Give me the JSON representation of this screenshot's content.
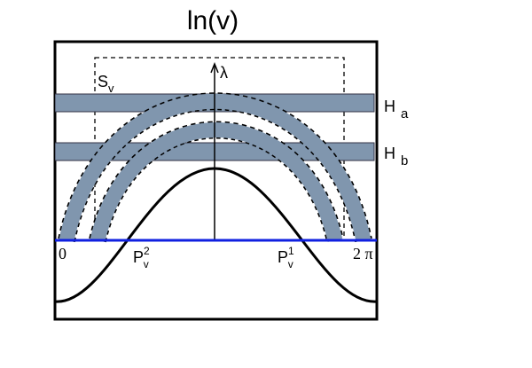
{
  "title": "ln(v)",
  "region": {
    "main": "S",
    "sub": "v"
  },
  "axis_label": "λ",
  "bands": [
    {
      "main": "H",
      "sub": "a"
    },
    {
      "main": "H",
      "sub": "b"
    }
  ],
  "x_labels": [
    "0",
    "2 π"
  ],
  "points": [
    {
      "main": "P",
      "sub": "v",
      "sup": "2"
    },
    {
      "main": "P",
      "sub": "v",
      "sup": "1"
    }
  ]
}
